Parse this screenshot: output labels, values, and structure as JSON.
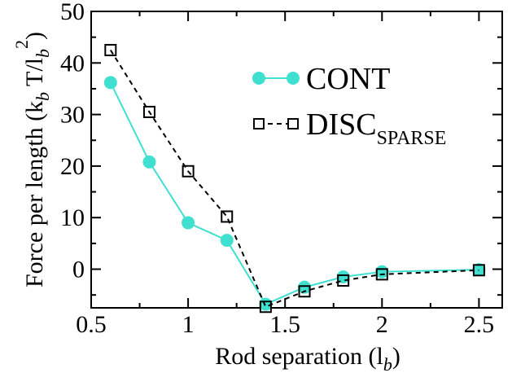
{
  "chart_data": {
    "type": "line",
    "xlabel": "Rod separation (l",
    "xlabel_sub": "b",
    "xlabel_close": ")",
    "ylabel": "Force per length (k",
    "ylabel_sub1": "b",
    "ylabel_mid": " T/l",
    "ylabel_sub2": "b",
    "ylabel_sup": "2",
    "ylabel_close": ")",
    "xlim": [
      0.5,
      2.62
    ],
    "ylim": [
      -7.5,
      50
    ],
    "xticks": [
      0.5,
      1,
      1.5,
      2,
      2.5
    ],
    "xtick_labels": [
      "0.5",
      "1",
      "1.5",
      "2",
      "2.5"
    ],
    "yticks": [
      0,
      10,
      20,
      30,
      40,
      50
    ],
    "ytick_labels": [
      "0",
      "10",
      "20",
      "30",
      "40",
      "50"
    ],
    "grid": false,
    "legend_position": "top-right",
    "series": [
      {
        "name": "CONT",
        "color": "#40e0d0",
        "line_style": "solid",
        "marker": "filled-circle",
        "x": [
          0.6,
          0.8,
          1.0,
          1.2,
          1.4,
          1.6,
          1.8,
          2.0,
          2.5
        ],
        "y": [
          36.2,
          20.8,
          9.0,
          5.6,
          -6.8,
          -3.5,
          -1.5,
          -0.5,
          -0.1
        ]
      },
      {
        "name": "DISC",
        "name_sub": "SPARSE",
        "color": "#000000",
        "line_style": "dashed",
        "marker": "open-square",
        "x": [
          0.6,
          0.8,
          1.0,
          1.2,
          1.4,
          1.6,
          1.8,
          2.0,
          2.5
        ],
        "y": [
          42.5,
          30.5,
          19.0,
          10.2,
          -7.3,
          -4.3,
          -2.2,
          -1.0,
          -0.2
        ]
      }
    ]
  }
}
